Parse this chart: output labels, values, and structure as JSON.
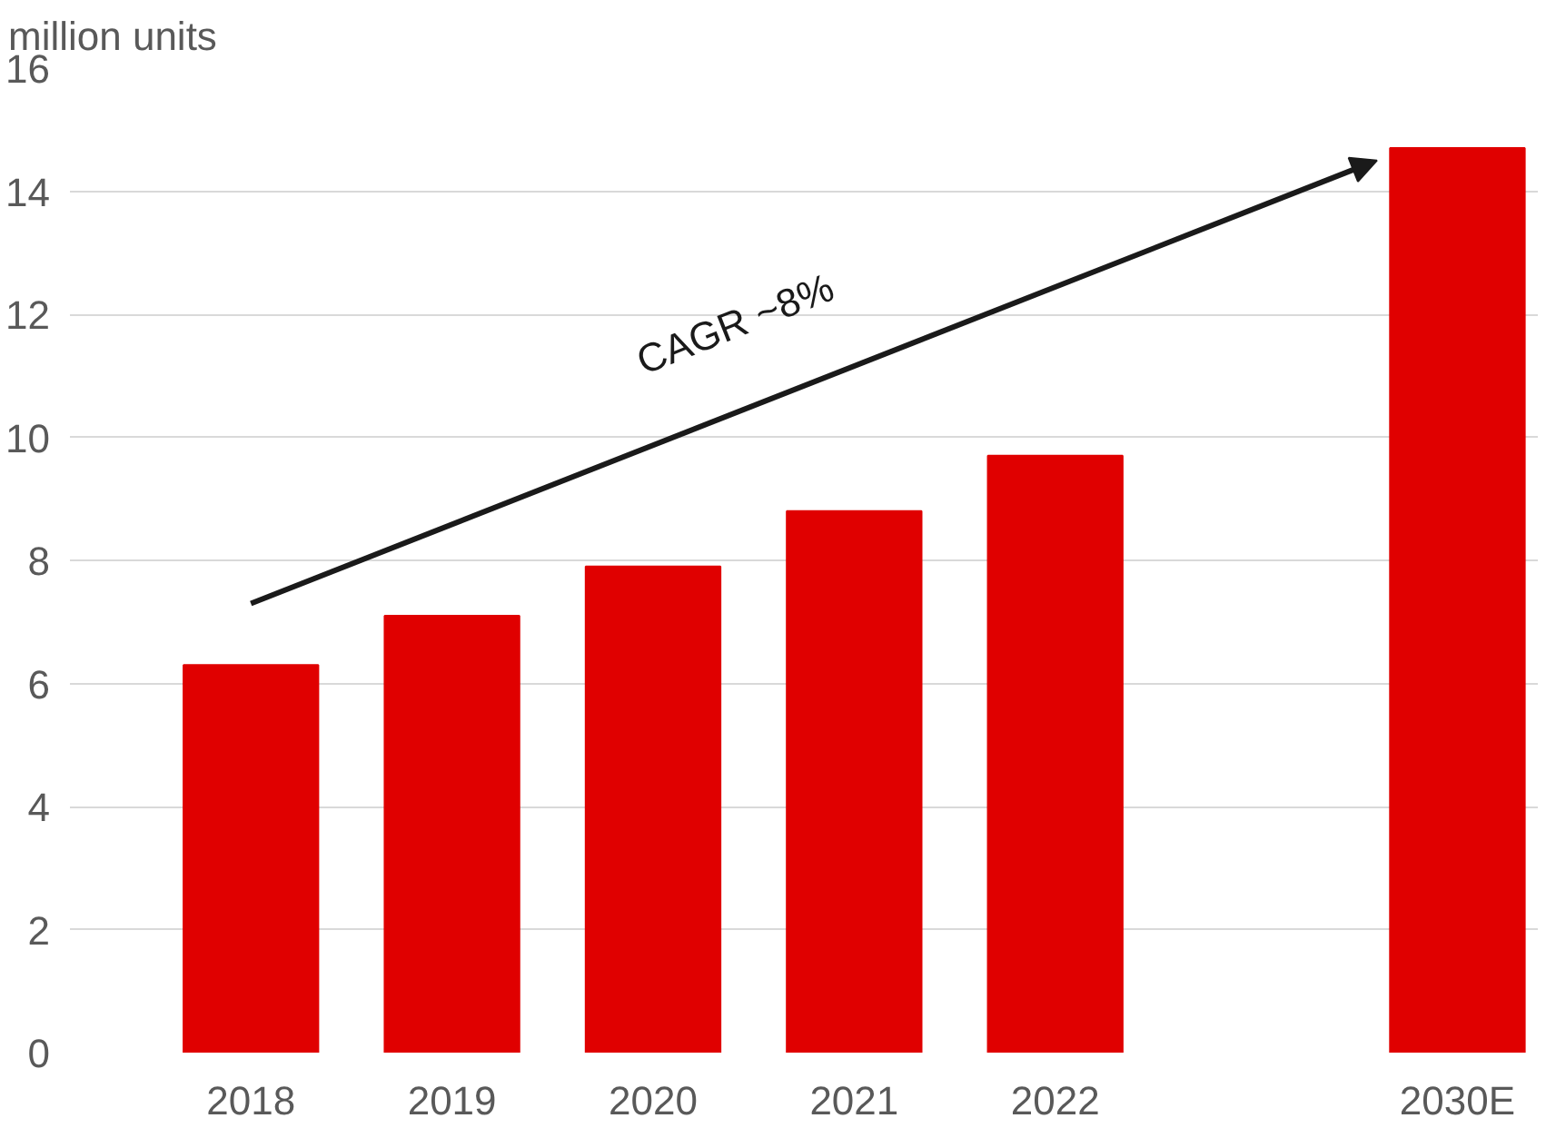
{
  "chart_data": {
    "type": "bar",
    "ylabel": "million units",
    "categories": [
      "2018",
      "2019",
      "2020",
      "2021",
      "2022",
      null,
      "2030E"
    ],
    "values": [
      6.3,
      7.1,
      7.9,
      8.8,
      9.7,
      null,
      14.7
    ],
    "color": "#e00000",
    "ylim": [
      0,
      16
    ],
    "yticks": [
      0,
      2,
      4,
      6,
      8,
      10,
      12,
      14,
      16
    ],
    "grid": "y",
    "annotations": [
      "CAGR ~8%"
    ]
  }
}
